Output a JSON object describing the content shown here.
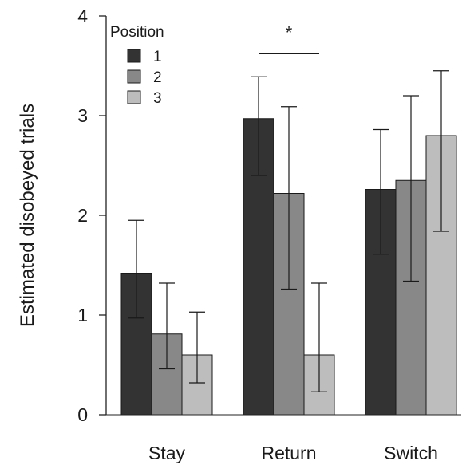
{
  "chart_data": {
    "type": "bar",
    "title": "",
    "xlabel": "",
    "ylabel": "Estimated disobeyed trials",
    "ylim": [
      0,
      4
    ],
    "yticks": [
      "0",
      "1",
      "2",
      "3",
      "4"
    ],
    "categories": [
      "Stay",
      "Return",
      "Switch"
    ],
    "legend_title": "Position",
    "legend_position": "top-left",
    "grid": false,
    "series": [
      {
        "name": "1",
        "color": "#333333",
        "values": [
          1.42,
          2.97,
          2.26
        ],
        "err_low": [
          0.97,
          2.4,
          1.61
        ],
        "err_high": [
          1.95,
          3.39,
          2.86
        ]
      },
      {
        "name": "2",
        "color": "#888888",
        "values": [
          0.81,
          2.22,
          2.35
        ],
        "err_low": [
          0.46,
          1.26,
          1.34
        ],
        "err_high": [
          1.32,
          3.09,
          3.2
        ]
      },
      {
        "name": "3",
        "color": "#bdbdbd",
        "values": [
          0.6,
          0.6,
          2.8
        ],
        "err_low": [
          0.32,
          0.23,
          1.84
        ],
        "err_high": [
          1.03,
          1.32,
          3.45
        ]
      }
    ],
    "annotations": [
      {
        "text": "*",
        "category": "Return",
        "y": 3.62
      }
    ]
  }
}
